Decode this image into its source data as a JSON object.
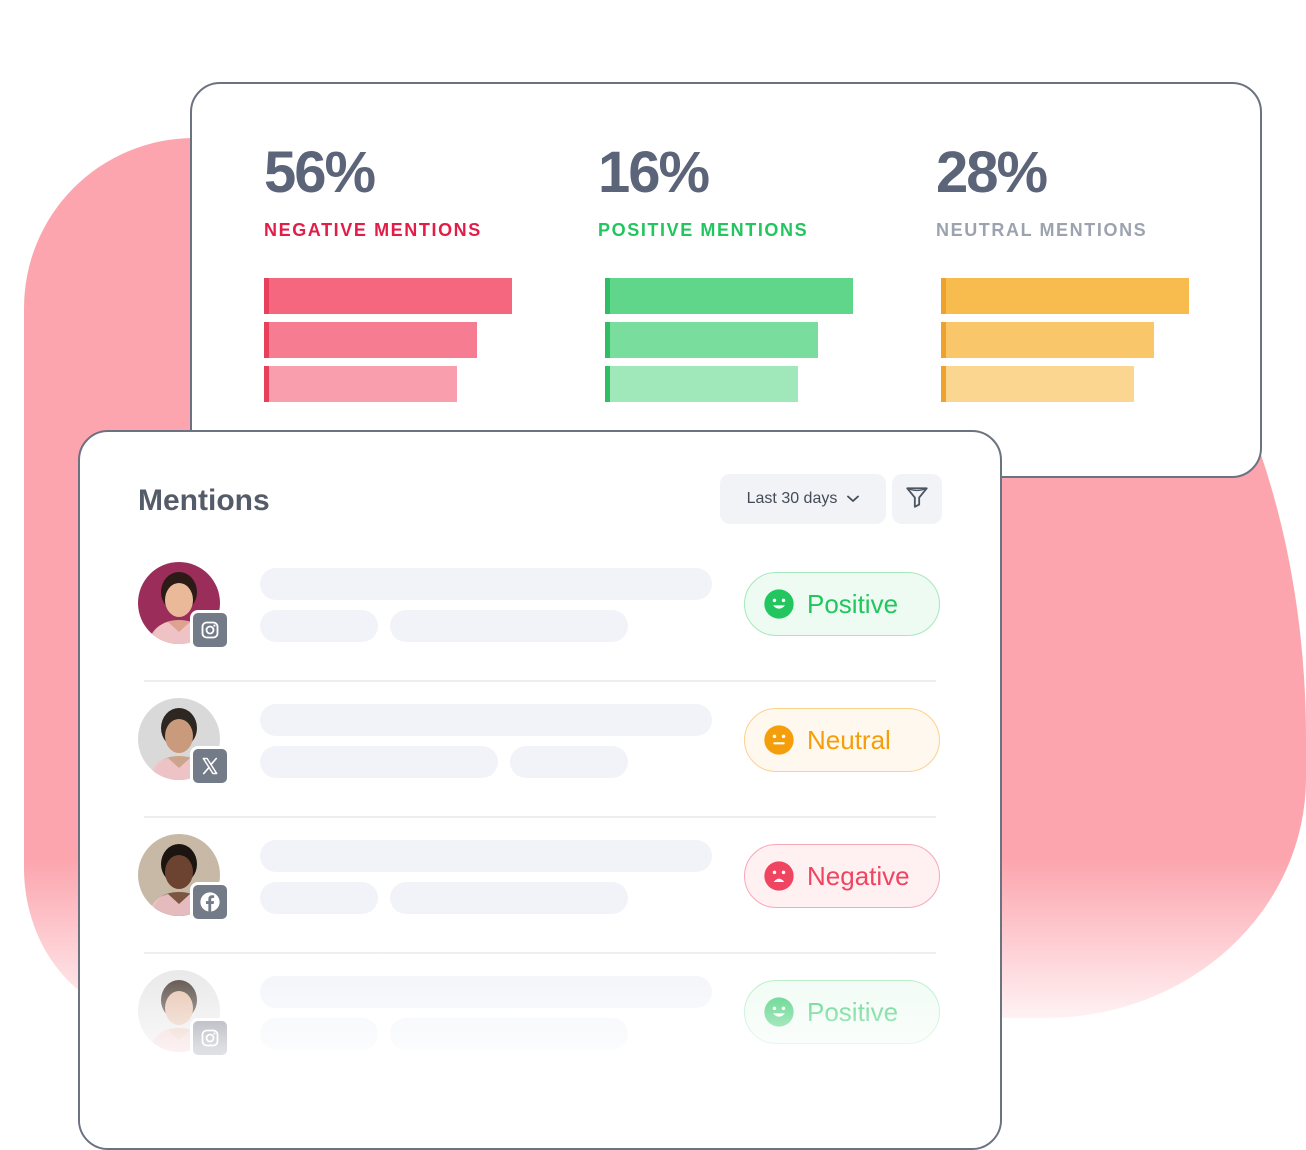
{
  "colors": {
    "negative": "#ef4561",
    "positive": "#22c55e",
    "neutral": "#f59e0b",
    "neutral_label": "#9ca3af",
    "background_blob": "#fca5ae"
  },
  "stats": [
    {
      "percent": "56%",
      "label": "NEGATIVE MENTIONS",
      "label_color": "#e11d48",
      "bars": [
        {
          "level": 1.0,
          "color": "#f5677f",
          "edge": "#e8405a"
        },
        {
          "level": 0.86,
          "color": "#f67d91",
          "edge": "#e8405a"
        },
        {
          "level": 0.78,
          "color": "#f99eac",
          "edge": "#e8405a"
        }
      ]
    },
    {
      "percent": "16%",
      "label": "POSITIVE MENTIONS",
      "label_color": "#22c55e",
      "bars": [
        {
          "level": 1.0,
          "color": "#5fd68a",
          "edge": "#2fbe63"
        },
        {
          "level": 0.86,
          "color": "#79de9d",
          "edge": "#2fbe63"
        },
        {
          "level": 0.78,
          "color": "#a0e8b9",
          "edge": "#2fbe63"
        }
      ]
    },
    {
      "percent": "28%",
      "label": "NEUTRAL MENTIONS",
      "label_color": "#9ca3af",
      "bars": [
        {
          "level": 1.0,
          "color": "#f8bb4e",
          "edge": "#f0a12b"
        },
        {
          "level": 0.86,
          "color": "#f9c76a",
          "edge": "#f0a12b"
        },
        {
          "level": 0.78,
          "color": "#fbd691",
          "edge": "#f0a12b"
        }
      ]
    }
  ],
  "mentions": {
    "title": "Mentions",
    "range_label": "Last 30 days",
    "range_icon": "chevron-down-icon",
    "filter_icon": "funnel-icon",
    "items": [
      {
        "network": "instagram-icon",
        "sentiment": "Positive",
        "sentiment_icon": "smile-icon",
        "text_color": "#22c55e",
        "pill_bg": "#eefbf2",
        "pill_border": "#a7e8bd",
        "icon_color": "#22c55e",
        "avatar_skin": "#e9b99a",
        "avatar_bg": "#9b2d5a",
        "avatar_hair": "#2b1a16"
      },
      {
        "network": "x-icon",
        "sentiment": "Neutral",
        "sentiment_icon": "neutral-face-icon",
        "text_color": "#f59e0b",
        "pill_bg": "#fff8ee",
        "pill_border": "#fbd28c",
        "icon_color": "#f59e0b",
        "avatar_skin": "#c99a7c",
        "avatar_bg": "#d9d9d9",
        "avatar_hair": "#2e2620"
      },
      {
        "network": "facebook-icon",
        "sentiment": "Negative",
        "sentiment_icon": "frown-icon",
        "text_color": "#ef4561",
        "pill_bg": "#fff0f2",
        "pill_border": "#f7a8b6",
        "icon_color": "#ef4561",
        "avatar_skin": "#6b4330",
        "avatar_bg": "#c7b9a6",
        "avatar_hair": "#1b1410"
      },
      {
        "network": "instagram-icon",
        "sentiment": "Positive",
        "sentiment_icon": "smile-icon",
        "text_color": "#22c55e",
        "pill_bg": "#eefbf2",
        "pill_border": "#a7e8bd",
        "icon_color": "#22c55e",
        "avatar_skin": "#e2b8a0",
        "avatar_bg": "#e5e5e5",
        "avatar_hair": "#3a2a22"
      }
    ]
  }
}
